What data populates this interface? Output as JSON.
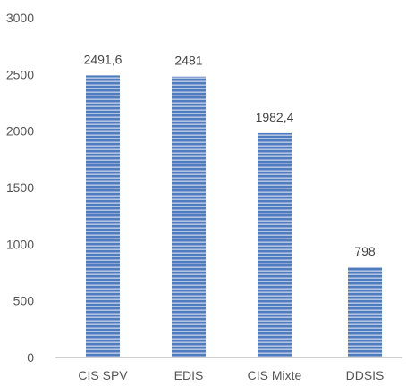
{
  "chart_data": {
    "type": "bar",
    "categories": [
      "CIS SPV",
      "EDIS",
      "CIS Mixte",
      "DDSIS"
    ],
    "values": [
      2491.6,
      2481,
      1982.4,
      798
    ],
    "value_labels": [
      "2491,6",
      "2481",
      "1982,4",
      "798"
    ],
    "title": "",
    "xlabel": "",
    "ylabel": "",
    "ylim": [
      0,
      3000
    ],
    "yticks": [
      0,
      500,
      1000,
      1500,
      2000,
      2500,
      3000
    ],
    "ytick_labels": [
      "0",
      "500",
      "1000",
      "1500",
      "2000",
      "2500",
      "3000"
    ],
    "grid": false,
    "legend": "none",
    "bar_color": "#4f7bbf",
    "bar_stripe_color": "#ffffff",
    "axis_color": "#cfcfcf"
  }
}
